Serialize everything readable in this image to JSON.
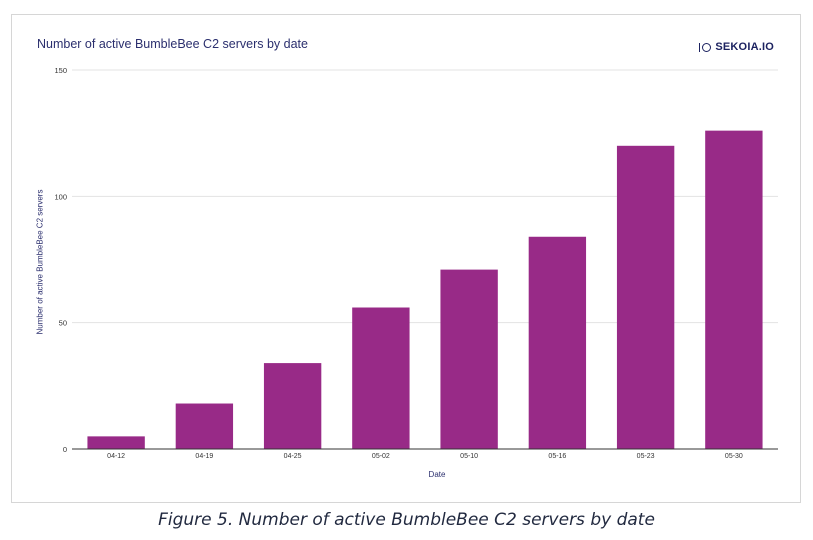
{
  "chart_data": {
    "type": "bar",
    "title": "Number of active BumbleBee C2 servers by date",
    "xlabel": "Date",
    "ylabel": "Number of active BumbleBee C2 servers",
    "categories": [
      "04-12",
      "04-19",
      "04-25",
      "05-02",
      "05-10",
      "05-16",
      "05-23",
      "05-30"
    ],
    "values": [
      5,
      18,
      34,
      56,
      71,
      84,
      120,
      126
    ],
    "ylim": [
      0,
      150
    ],
    "yticks": [
      "0",
      "50",
      "100",
      "150"
    ],
    "grid": true,
    "legend": "none",
    "bar_color": "#982a87",
    "grid_color": "#e3e3e3",
    "axis_color": "#333333"
  },
  "logo": {
    "text": "SEKOIA.IO"
  },
  "caption": "Figure 5. Number of active BumbleBee C2 servers by date"
}
